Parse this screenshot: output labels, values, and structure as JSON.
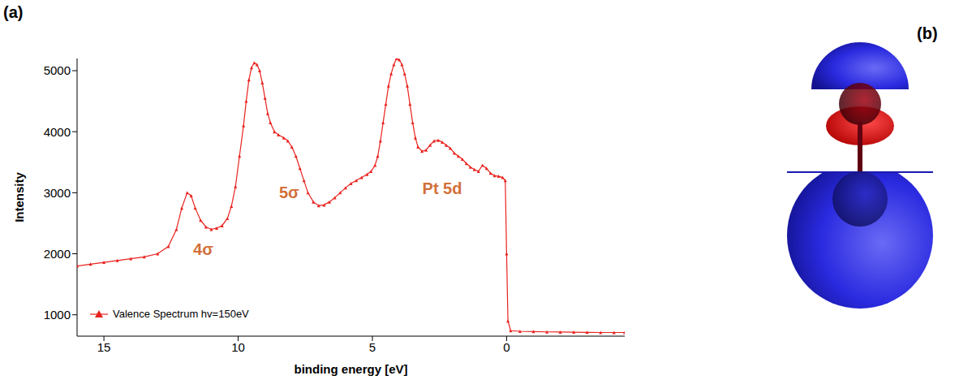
{
  "panel_labels": {
    "a": "(a)",
    "b": "(b)"
  },
  "chart_data": {
    "type": "line",
    "x_label": "binding energy [eV]",
    "y_label": "Intensity",
    "xlim": [
      16,
      -4.4
    ],
    "xticks": [
      15,
      10,
      5,
      0
    ],
    "ylim": [
      650,
      5200
    ],
    "yticks": [
      1000,
      2000,
      3000,
      4000,
      5000
    ],
    "grid": false,
    "legend": "lower left",
    "x": [
      16,
      15.5,
      15,
      14.5,
      14,
      13.5,
      13,
      12.6,
      12.3,
      12.1,
      11.9,
      11.75,
      11.6,
      11.4,
      11.2,
      11,
      10.8,
      10.6,
      10.4,
      10.25,
      10.1,
      9.95,
      9.8,
      9.7,
      9.6,
      9.5,
      9.4,
      9.3,
      9.2,
      9.1,
      9.0,
      8.9,
      8.8,
      8.65,
      8.5,
      8.3,
      8.15,
      8.0,
      7.85,
      7.7,
      7.55,
      7.4,
      7.2,
      7.0,
      6.8,
      6.6,
      6.4,
      6.2,
      6.0,
      5.8,
      5.6,
      5.4,
      5.2,
      5.05,
      4.9,
      4.8,
      4.7,
      4.6,
      4.5,
      4.4,
      4.3,
      4.2,
      4.1,
      4.0,
      3.9,
      3.8,
      3.7,
      3.6,
      3.5,
      3.4,
      3.3,
      3.15,
      3.0,
      2.85,
      2.7,
      2.55,
      2.4,
      2.25,
      2.1,
      1.95,
      1.8,
      1.65,
      1.5,
      1.35,
      1.2,
      1.05,
      0.9,
      0.75,
      0.6,
      0.45,
      0.3,
      0.15,
      0.05,
      0.0,
      -0.05,
      -0.15,
      -0.5,
      -1.0,
      -1.5,
      -2.0,
      -2.5,
      -3.0,
      -3.5,
      -4.0,
      -4.4
    ],
    "series": [
      {
        "name": "Valence Spectrum hv=150eV",
        "color": "#e8231f",
        "marker": "triangle",
        "values": [
          1800,
          1830,
          1860,
          1890,
          1920,
          1950,
          2000,
          2120,
          2400,
          2750,
          3000,
          2950,
          2750,
          2550,
          2440,
          2400,
          2420,
          2460,
          2580,
          2780,
          3100,
          3600,
          4100,
          4500,
          4850,
          5050,
          5130,
          5100,
          5000,
          4800,
          4550,
          4300,
          4150,
          4000,
          3950,
          3900,
          3850,
          3750,
          3600,
          3400,
          3200,
          3000,
          2850,
          2790,
          2800,
          2850,
          2920,
          3000,
          3080,
          3150,
          3200,
          3250,
          3300,
          3350,
          3450,
          3600,
          3850,
          4150,
          4450,
          4750,
          4950,
          5100,
          5200,
          5180,
          5100,
          4950,
          4750,
          4450,
          4150,
          3900,
          3750,
          3680,
          3700,
          3780,
          3850,
          3860,
          3830,
          3780,
          3730,
          3650,
          3600,
          3550,
          3480,
          3420,
          3380,
          3350,
          3450,
          3400,
          3320,
          3280,
          3270,
          3250,
          3200,
          2000,
          900,
          740,
          730,
          725,
          720,
          718,
          715,
          712,
          710,
          710,
          710
        ]
      }
    ],
    "annotations": [
      {
        "text": "4σ",
        "x": 11.3,
        "y": 2070
      },
      {
        "text": "5σ",
        "x": 8.1,
        "y": 3000
      },
      {
        "text": "Pt 5d",
        "x": 2.4,
        "y": 3070
      }
    ]
  }
}
